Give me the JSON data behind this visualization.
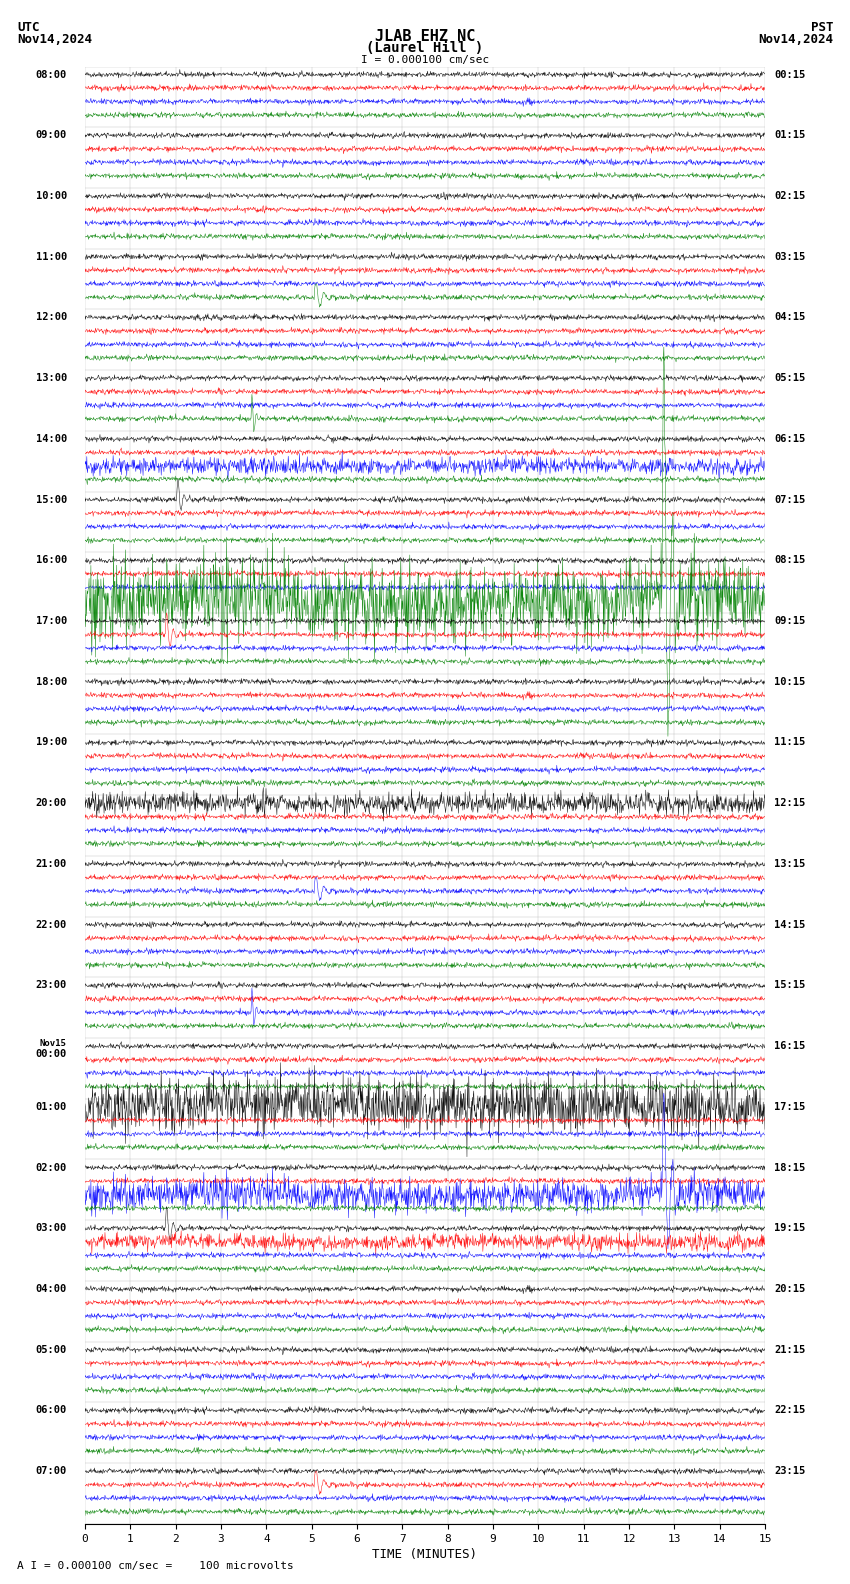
{
  "title_line1": "JLAB EHZ NC",
  "title_line2": "(Laurel Hill )",
  "scale_label": "I = 0.000100 cm/sec",
  "utc_label": "UTC",
  "utc_date": "Nov14,2024",
  "pst_label": "PST",
  "pst_date": "Nov14,2024",
  "bottom_label": "A I = 0.000100 cm/sec =    100 microvolts",
  "xlabel": "TIME (MINUTES)",
  "left_times": [
    "08:00",
    "09:00",
    "10:00",
    "11:00",
    "12:00",
    "13:00",
    "14:00",
    "15:00",
    "16:00",
    "17:00",
    "18:00",
    "19:00",
    "20:00",
    "21:00",
    "22:00",
    "23:00",
    "Nov15",
    "01:00",
    "02:00",
    "03:00",
    "04:00",
    "05:00",
    "06:00",
    "07:00"
  ],
  "left_times2": [
    "",
    "",
    "",
    "",
    "",
    "",
    "",
    "",
    "",
    "",
    "",
    "",
    "",
    "",
    "",
    "",
    "00:00",
    "",
    "",
    "",
    "",
    "",
    "",
    ""
  ],
  "right_times": [
    "00:15",
    "01:15",
    "02:15",
    "03:15",
    "04:15",
    "05:15",
    "06:15",
    "07:15",
    "08:15",
    "09:15",
    "10:15",
    "11:15",
    "12:15",
    "13:15",
    "14:15",
    "15:15",
    "16:15",
    "17:15",
    "18:15",
    "19:15",
    "20:15",
    "21:15",
    "22:15",
    "23:15"
  ],
  "n_rows": 24,
  "traces_per_row": 4,
  "colors": [
    "black",
    "red",
    "blue",
    "green"
  ],
  "bg_color": "white",
  "time_minutes": 15,
  "noise_seed": 42
}
